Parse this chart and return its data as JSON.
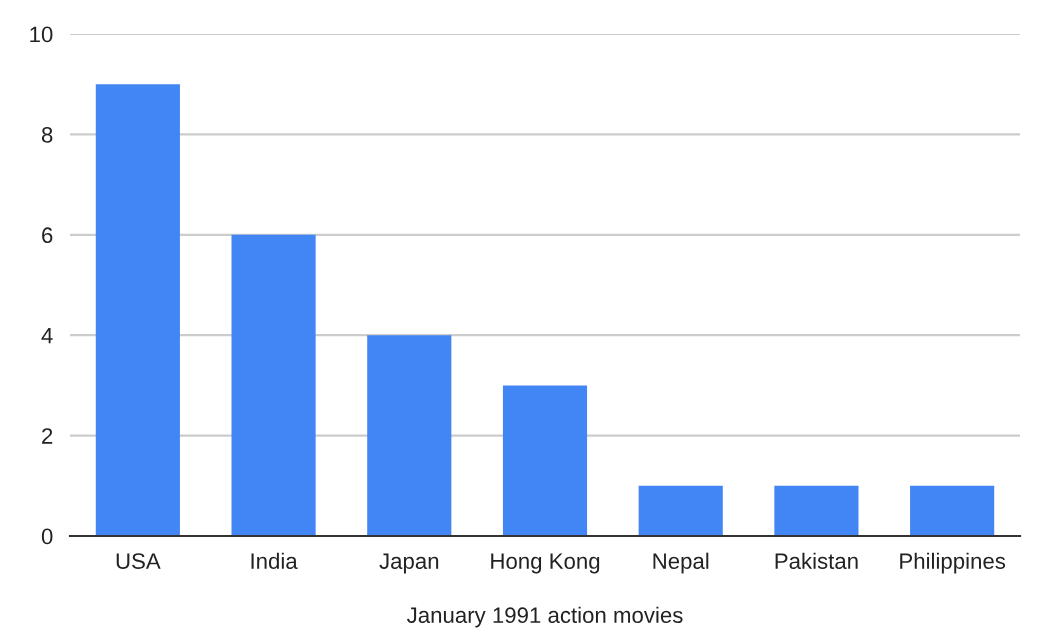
{
  "chart_data": {
    "type": "bar",
    "xlabel": "January 1991 action movies",
    "categories": [
      "USA",
      "India",
      "Japan",
      "Hong Kong",
      "Nepal",
      "Pakistan",
      "Philippines"
    ],
    "values": [
      9,
      6,
      4,
      3,
      1,
      1,
      1
    ],
    "color": "#4285f4",
    "ylim": [
      0,
      10
    ],
    "yticks": [
      0,
      2,
      4,
      6,
      8,
      10
    ],
    "grid": "y"
  }
}
